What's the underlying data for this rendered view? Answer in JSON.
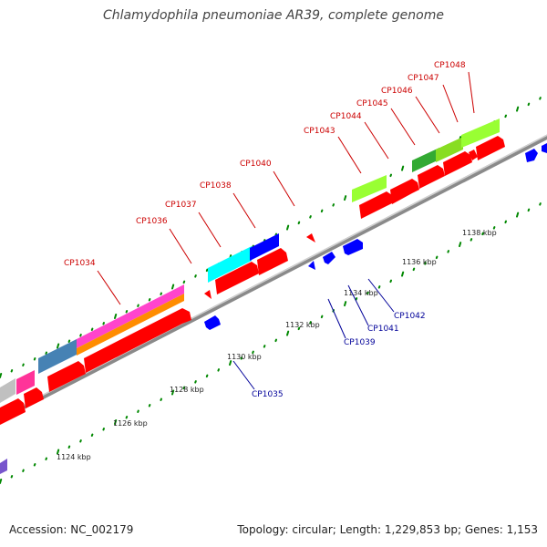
{
  "title": "Chlamydophila pneumoniae AR39, complete genome",
  "footer": {
    "accession": "Accession: NC_002179",
    "topology": "Topology: circular; Length: 1,229,853 bp; Genes: 1,153"
  },
  "colors": {
    "forward_gene": "#ff0000",
    "reverse_gene": "#0000ff",
    "backbone": "#888888",
    "tick": "#008800",
    "label_forward": "#cc0000",
    "label_reverse": "#000099"
  },
  "scale_labels": [
    "1124 kbp",
    "1126 kbp",
    "1128 kbp",
    "1130 kbp",
    "1132 kbp",
    "1134 kbp",
    "1136 kbp",
    "1138 kbp"
  ],
  "forward_genes": [
    "CP1034",
    "CP1036",
    "CP1037",
    "CP1038",
    "CP1040",
    "CP1043",
    "CP1044",
    "CP1045",
    "CP1046",
    "CP1047",
    "CP1048"
  ],
  "reverse_genes": [
    "CP1035",
    "CP1039",
    "CP1041",
    "CP1042"
  ],
  "cog_colors": [
    "#c0c0c0",
    "#ff33aa",
    "#4682b4",
    "#ff44cc",
    "#ff8c00",
    "#00ffff",
    "#0000ff",
    "#99ff33",
    "#33bb33",
    "#228822",
    "#7755cc"
  ]
}
